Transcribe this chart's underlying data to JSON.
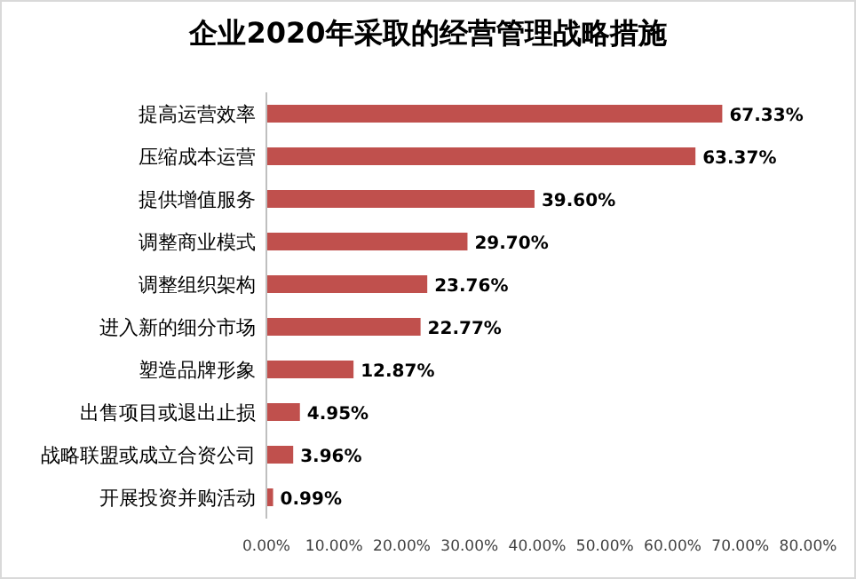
{
  "chart_data": {
    "type": "bar",
    "orientation": "horizontal",
    "title": "企业2020年采取的经营管理战略措施",
    "categories": [
      "提高运营效率",
      "压缩成本运营",
      "提供增值服务",
      "调整商业模式",
      "调整组织架构",
      "进入新的细分市场",
      "塑造品牌形象",
      "出售项目或退出止损",
      "战略联盟或成立合资公司",
      "开展投资并购活动"
    ],
    "values": [
      67.33,
      63.37,
      39.6,
      29.7,
      23.76,
      22.77,
      12.87,
      4.95,
      3.96,
      0.99
    ],
    "value_labels": [
      "67.33%",
      "63.37%",
      "39.60%",
      "29.70%",
      "23.76%",
      "22.77%",
      "12.87%",
      "4.95%",
      "3.96%",
      "0.99%"
    ],
    "color": "#c0504d",
    "xlim": [
      0,
      80
    ],
    "xticks": [
      {
        "value": 0,
        "label": "0.00%"
      },
      {
        "value": 10,
        "label": "10.00%"
      },
      {
        "value": 20,
        "label": "20.00%"
      },
      {
        "value": 30,
        "label": "30.00%"
      },
      {
        "value": 40,
        "label": "40.00%"
      },
      {
        "value": 50,
        "label": "50.00%"
      },
      {
        "value": 60,
        "label": "60.00%"
      },
      {
        "value": 70,
        "label": "70.00%"
      },
      {
        "value": 80,
        "label": "80.00%"
      }
    ],
    "grid": false
  }
}
